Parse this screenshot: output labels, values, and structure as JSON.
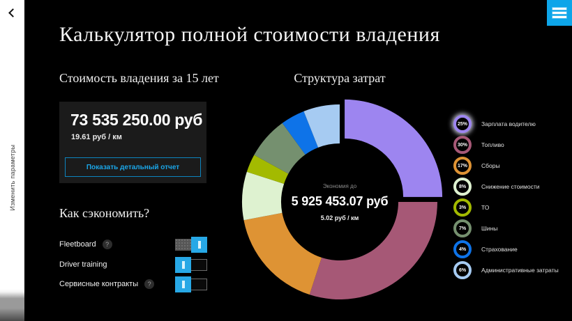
{
  "colors": {
    "background": "#000000",
    "accent_blue": "#0da5e9",
    "card_background": "#1b1b1b",
    "sidebar_background": "#ffffff"
  },
  "sidebar": {
    "label": "Изменить параметры",
    "back_icon": "chevron-left"
  },
  "header": {
    "title": "Калькулятор полной стоимости владения",
    "menu_icon": "hamburger-menu"
  },
  "cost_panel": {
    "heading": "Стоимость владения за 15 лет",
    "total": "73 535 250.00 руб",
    "per_km": "19.61 руб / км",
    "report_button": "Показать детальный отчет"
  },
  "savings": {
    "heading": "Как сэкономить?",
    "toggles": [
      {
        "name": "fleetboard",
        "label": "Fleetboard",
        "help": true,
        "help_icon": "?",
        "state": "on"
      },
      {
        "name": "driver-training",
        "label": "Driver training",
        "help": false,
        "help_icon": "?",
        "state": "off"
      },
      {
        "name": "service-contracts",
        "label": "Сервисные контракты",
        "help": true,
        "help_icon": "?",
        "state": "off"
      }
    ]
  },
  "chart_data": {
    "type": "pie",
    "subtype": "donut",
    "title": "Структура затрат",
    "center_label": "Экономия до",
    "center_value": "5 925 453.07 руб",
    "center_unit": "5.02 руб / км",
    "legend_position": "right",
    "slices": [
      {
        "name": "driver-salary",
        "label": "Зарплата водителю",
        "percent": 25,
        "color": "#9d85f0",
        "exploded": true,
        "legend_glow": true
      },
      {
        "name": "fuel",
        "label": "Топливо",
        "percent": 30,
        "color": "#a65876",
        "exploded": false,
        "legend_glow": false
      },
      {
        "name": "fees",
        "label": "Сборы",
        "percent": 17,
        "color": "#de9334",
        "exploded": false,
        "legend_glow": false
      },
      {
        "name": "depreciation",
        "label": "Снижение стоимости",
        "percent": 8,
        "color": "#def2d0",
        "exploded": false,
        "legend_glow": false
      },
      {
        "name": "maintenance",
        "label": "ТО",
        "percent": 3,
        "color": "#a3ba00",
        "exploded": false,
        "legend_glow": false
      },
      {
        "name": "tires",
        "label": "Шины",
        "percent": 7,
        "color": "#75906f",
        "exploded": false,
        "legend_glow": false
      },
      {
        "name": "insurance",
        "label": "Страхование",
        "percent": 4,
        "color": "#0e73e8",
        "exploded": false,
        "legend_glow": false
      },
      {
        "name": "admin",
        "label": "Административные затраты",
        "percent": 6,
        "color": "#a6cbf2",
        "exploded": false,
        "legend_glow": false
      }
    ]
  }
}
